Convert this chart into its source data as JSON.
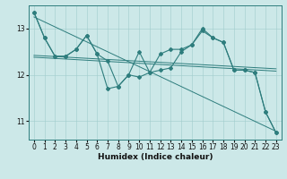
{
  "xlabel": "Humidex (Indice chaleur)",
  "bg_color": "#cce8e8",
  "line_color": "#2e7d7d",
  "xlim": [
    -0.5,
    23.5
  ],
  "ylim": [
    10.6,
    13.5
  ],
  "yticks": [
    11,
    12,
    13
  ],
  "xticks": [
    0,
    1,
    2,
    3,
    4,
    5,
    6,
    7,
    8,
    9,
    10,
    11,
    12,
    13,
    14,
    15,
    16,
    17,
    18,
    19,
    20,
    21,
    22,
    23
  ],
  "series1_y": [
    13.35,
    12.8,
    12.4,
    12.4,
    12.55,
    12.85,
    12.45,
    11.7,
    11.75,
    12.0,
    11.95,
    12.05,
    12.45,
    12.55,
    12.55,
    12.65,
    13.0,
    12.8,
    12.7,
    12.1,
    12.1,
    12.05,
    11.2,
    10.75
  ],
  "series2_y": [
    13.35,
    12.8,
    12.4,
    12.4,
    12.55,
    12.85,
    12.45,
    12.3,
    11.75,
    12.0,
    12.5,
    12.05,
    12.1,
    12.15,
    12.5,
    12.65,
    12.95,
    12.8,
    12.7,
    12.1,
    12.1,
    12.05,
    11.2,
    10.75
  ],
  "trend1_x": [
    0,
    23
  ],
  "trend1_y": [
    13.25,
    10.78
  ],
  "trend2_x": [
    0,
    23
  ],
  "trend2_y": [
    12.38,
    12.08
  ],
  "trend3_x": [
    0,
    23
  ],
  "trend3_y": [
    12.42,
    12.13
  ]
}
